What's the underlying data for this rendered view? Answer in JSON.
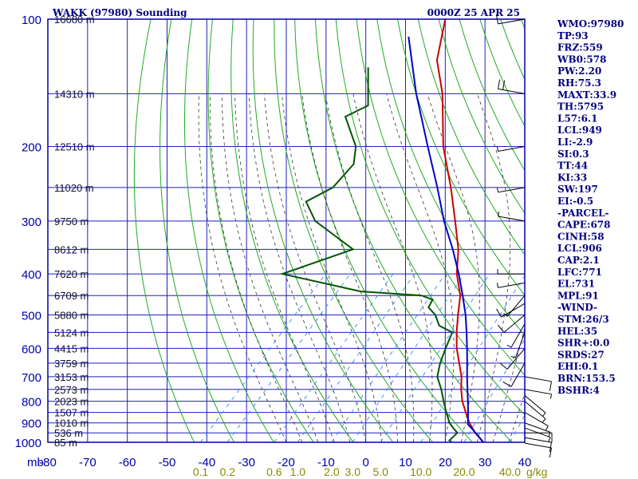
{
  "header": {
    "station": "WAKK (97980) Sounding",
    "datetime": "0000Z 25 APR 25"
  },
  "colors": {
    "frame": "#0000aa",
    "grid": "#1f1fbf",
    "dry_adiabat": "#22aa22",
    "moist_adiabat": "#333333",
    "mixing_ratio": "#3388ff",
    "temperature": "#cc0000",
    "dewpoint": "#005500",
    "parcel": "#0000cc",
    "mixing_label": "#8a8a00",
    "panel_text": "#000080"
  },
  "indices": [
    "WMO:97980",
    "TP:93",
    "FRZ:559",
    "WB0:578",
    "PW:2.20",
    "RH:75.3",
    "MAXT:33.9",
    "TH:5795",
    "L57:6.1",
    "LCL:949",
    "LI:-2.9",
    "SI:0.3",
    "TT:44",
    "KI:33",
    "SW:197",
    "EI:-0.5",
    "-PARCEL-",
    "CAPE:678",
    "CINH:58",
    "LCL:906",
    "CAP:2.1",
    "LFC:771",
    "EL:731",
    "MPL:91",
    "-WIND-",
    "STM:26/3",
    "HEL:35",
    "SHR+:0.0",
    "SRDS:27",
    "EHI:0.1",
    "BRN:153.5",
    "BSHR:4"
  ],
  "chart_data": {
    "type": "line",
    "title": "WAKK (97980) Sounding",
    "subtitle": "0000Z 25 APR 25",
    "xlabel": "",
    "ylabel": "mb",
    "ylabel_text": "mb",
    "skew_per_decade": 100,
    "xlim": [
      -80,
      40
    ],
    "ylim": [
      100,
      1000
    ],
    "y_scale": "log",
    "grid": true,
    "pressure_ticks": [
      100,
      200,
      300,
      400,
      500,
      600,
      700,
      800,
      900,
      1000
    ],
    "temperature_ticks": [
      -80,
      -70,
      -60,
      -50,
      -40,
      -30,
      -20,
      -10,
      0,
      10,
      20,
      30,
      40
    ],
    "temperature_tick_labels": [
      "-80",
      "-70",
      "-60",
      "-50",
      "-40",
      "-30",
      "-20",
      "-10",
      "0",
      "10",
      "20",
      "30",
      "40"
    ],
    "height_labels": [
      {
        "p": 100,
        "text": "16680 m"
      },
      {
        "p": 150,
        "text": "14310 m"
      },
      {
        "p": 200,
        "text": "12510 m"
      },
      {
        "p": 250,
        "text": "11020 m"
      },
      {
        "p": 300,
        "text": "9750 m"
      },
      {
        "p": 350,
        "text": "8612 m"
      },
      {
        "p": 400,
        "text": "7620 m"
      },
      {
        "p": 450,
        "text": "6709 m"
      },
      {
        "p": 500,
        "text": "5880 m"
      },
      {
        "p": 550,
        "text": "5124 m"
      },
      {
        "p": 600,
        "text": "4415 m"
      },
      {
        "p": 650,
        "text": "3759 m"
      },
      {
        "p": 700,
        "text": "3153 m"
      },
      {
        "p": 750,
        "text": "2573 m"
      },
      {
        "p": 800,
        "text": "2023 m"
      },
      {
        "p": 850,
        "text": "1507 m"
      },
      {
        "p": 900,
        "text": "1010 m"
      },
      {
        "p": 950,
        "text": "536 m"
      },
      {
        "p": 1000,
        "text": "85 m"
      }
    ],
    "mixing_ratio_labels": [
      "0.1",
      "0.2",
      "0.6",
      "1.0",
      "2.0",
      "3.0",
      "5.0",
      "10.0",
      "20.0",
      "40.0"
    ],
    "mixing_ratio_unit": "g/kg",
    "series": [
      {
        "key": "temperature",
        "p": [
          1005,
          950,
          900,
          850,
          800,
          750,
          700,
          650,
          600,
          550,
          500,
          450,
          400,
          350,
          300,
          250,
          200,
          150,
          125,
          100
        ],
        "t": [
          30,
          25.3,
          21.5,
          18.1,
          14.6,
          11.5,
          8.6,
          4.8,
          0.7,
          -3.1,
          -6.9,
          -10.9,
          -16.9,
          -22.3,
          -29.8,
          -38.8,
          -50.4,
          -63.1,
          -72.4,
          -80.0
        ]
      },
      {
        "key": "dewpoint",
        "p": [
          1005,
          990,
          950,
          925,
          900,
          850,
          800,
          750,
          700,
          650,
          600,
          550,
          530,
          500,
          480,
          460,
          450,
          440,
          400,
          350,
          300,
          270,
          250,
          220,
          200,
          170,
          160,
          130
        ],
        "t": [
          22.1,
          20.6,
          20.8,
          18.6,
          16.5,
          13.2,
          9.9,
          6.5,
          2.5,
          0.0,
          -2.1,
          -4.2,
          -9.1,
          -12.6,
          -16.1,
          -16.9,
          -20.6,
          -37.0,
          -60.8,
          -48.8,
          -65.0,
          -71.9,
          -68.5,
          -68.8,
          -72.4,
          -82.1,
          -79.0,
          -88.0
        ]
      },
      {
        "key": "parcel",
        "p": [
          1005,
          950,
          906,
          850,
          800,
          750,
          700,
          650,
          600,
          550,
          500,
          450,
          400,
          350,
          300,
          250,
          200,
          150,
          110
        ],
        "t": [
          30,
          25.4,
          21.4,
          18.7,
          16.0,
          13.1,
          10.0,
          6.8,
          3.3,
          -0.6,
          -5.0,
          -10.3,
          -16.4,
          -23.7,
          -32.6,
          -42.2,
          -54.3,
          -69.7,
          -85.1
        ]
      }
    ],
    "wind_barbs": [
      {
        "p": 1005,
        "dir": 100,
        "spd": 10
      },
      {
        "p": 975,
        "dir": 100,
        "spd": 10
      },
      {
        "p": 950,
        "dir": 90,
        "spd": 10
      },
      {
        "p": 925,
        "dir": 110,
        "spd": 5
      },
      {
        "p": 900,
        "dir": 110,
        "spd": 5
      },
      {
        "p": 850,
        "dir": 120,
        "spd": 5
      },
      {
        "p": 800,
        "dir": 130,
        "spd": 5
      },
      {
        "p": 775,
        "dir": 130,
        "spd": 5
      },
      {
        "p": 750,
        "dir": 100,
        "spd": 5
      },
      {
        "p": 700,
        "dir": 100,
        "spd": 10
      },
      {
        "p": 650,
        "dir": 210,
        "spd": 10
      },
      {
        "p": 600,
        "dir": 220,
        "spd": 10
      },
      {
        "p": 550,
        "dir": 200,
        "spd": 5
      },
      {
        "p": 525,
        "dir": 210,
        "spd": 5
      },
      {
        "p": 500,
        "dir": 230,
        "spd": 10
      },
      {
        "p": 470,
        "dir": 240,
        "spd": 10
      },
      {
        "p": 450,
        "dir": 220,
        "spd": 5
      },
      {
        "p": 420,
        "dir": 260,
        "spd": 5
      },
      {
        "p": 400,
        "dir": 270,
        "spd": 5
      },
      {
        "p": 300,
        "dir": 280,
        "spd": 5
      },
      {
        "p": 250,
        "dir": 260,
        "spd": 5
      },
      {
        "p": 200,
        "dir": 260,
        "spd": 5
      },
      {
        "p": 150,
        "dir": 280,
        "spd": 20
      },
      {
        "p": 100,
        "dir": 260,
        "spd": 10
      }
    ]
  }
}
